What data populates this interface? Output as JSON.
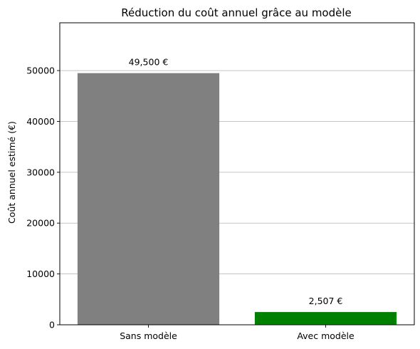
{
  "chart_data": {
    "type": "bar",
    "title": "Réduction du coût annuel grâce au modèle",
    "xlabel": "",
    "ylabel": "Coût annuel estimé (€)",
    "categories": [
      "Sans modèle",
      "Avec modèle"
    ],
    "values": [
      49500,
      2507
    ],
    "data_labels": [
      "49,500 €",
      "2,507 €"
    ],
    "colors": [
      "#808080",
      "#008000"
    ],
    "ylim": [
      0,
      59400
    ],
    "yticks": [
      0,
      10000,
      20000,
      30000,
      40000,
      50000
    ],
    "ytick_labels": [
      "0",
      "10000",
      "20000",
      "30000",
      "40000",
      "50000"
    ],
    "grid": "y",
    "legend": "none"
  }
}
